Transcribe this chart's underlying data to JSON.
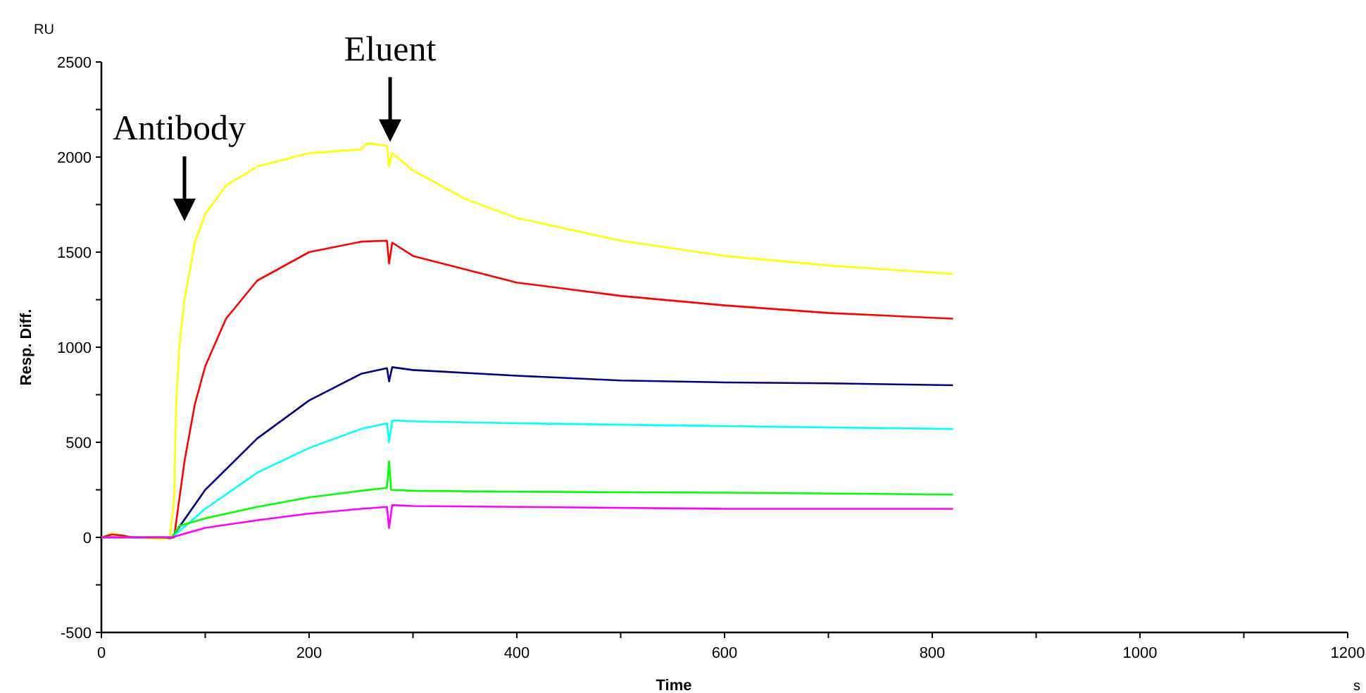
{
  "chart_data": {
    "type": "line",
    "xlabel": "Time",
    "ylabel": "Resp. Diff.",
    "xlim": [
      0,
      1200
    ],
    "ylim": [
      -500,
      2500
    ],
    "xticks": [
      0,
      {
        "value": 100,
        "label": null
      },
      200,
      {
        "value": 300,
        "label": null
      },
      400,
      {
        "value": 500,
        "label": null
      },
      600,
      {
        "value": 700,
        "label": null
      },
      800,
      {
        "value": 900,
        "label": null
      },
      1000,
      {
        "value": 1100,
        "label": null
      },
      1200
    ],
    "yticks": [
      -500,
      {
        "value": -250,
        "label": null
      },
      0,
      {
        "value": 250,
        "label": null
      },
      500,
      {
        "value": 750,
        "label": null
      },
      1000,
      {
        "value": 1250,
        "label": null
      },
      1500,
      {
        "value": 1750,
        "label": null
      },
      2000,
      {
        "value": 2250,
        "label": null
      },
      2500
    ],
    "grid": false,
    "marker": "none",
    "line_style": "solid",
    "series": [
      {
        "color": "#ffff00",
        "x": [
          0,
          10,
          20,
          30,
          60,
          66,
          70,
          72,
          75,
          80,
          90,
          100,
          120,
          150,
          200,
          250,
          255,
          260,
          275,
          277,
          280,
          300,
          350,
          400,
          500,
          600,
          700,
          820
        ],
        "values": [
          0,
          20,
          10,
          0,
          -10,
          0,
          200,
          700,
          1000,
          1250,
          1550,
          1700,
          1850,
          1950,
          2020,
          2040,
          2070,
          2070,
          2060,
          1950,
          2020,
          1930,
          1780,
          1680,
          1560,
          1480,
          1430,
          1385
        ]
      },
      {
        "color": "#ff0000",
        "x": [
          0,
          10,
          20,
          30,
          60,
          66,
          70,
          80,
          90,
          100,
          120,
          150,
          200,
          250,
          275,
          277,
          280,
          300,
          400,
          500,
          600,
          700,
          820
        ],
        "values": [
          0,
          15,
          10,
          0,
          0,
          -5,
          0,
          400,
          700,
          900,
          1150,
          1350,
          1500,
          1555,
          1560,
          1440,
          1550,
          1480,
          1340,
          1270,
          1220,
          1180,
          1150
        ]
      },
      {
        "color": "#000080",
        "x": [
          0,
          66,
          68,
          100,
          150,
          200,
          250,
          275,
          277,
          280,
          300,
          400,
          500,
          600,
          700,
          820
        ],
        "values": [
          0,
          0,
          0,
          250,
          520,
          720,
          860,
          890,
          820,
          895,
          880,
          850,
          825,
          815,
          810,
          800
        ]
      },
      {
        "color": "#00ffff",
        "x": [
          0,
          66,
          68,
          100,
          150,
          200,
          250,
          275,
          277,
          280,
          300,
          400,
          600,
          820
        ],
        "values": [
          0,
          0,
          0,
          150,
          340,
          470,
          570,
          600,
          500,
          615,
          610,
          600,
          585,
          570
        ]
      },
      {
        "color": "#00ff00",
        "x": [
          0,
          66,
          68,
          75,
          100,
          150,
          200,
          250,
          275,
          277,
          279,
          300,
          400,
          600,
          820
        ],
        "values": [
          0,
          0,
          0,
          60,
          100,
          160,
          210,
          245,
          260,
          400,
          250,
          245,
          240,
          235,
          225
        ]
      },
      {
        "color": "#ff00ff",
        "x": [
          0,
          66,
          68,
          100,
          150,
          200,
          250,
          275,
          277,
          280,
          300,
          400,
          600,
          820
        ],
        "values": [
          0,
          0,
          0,
          50,
          90,
          125,
          150,
          160,
          50,
          170,
          165,
          160,
          150,
          150
        ]
      }
    ],
    "annotations": [
      "RU",
      "s",
      "Antibody",
      {
        "text": "Eluent",
        "x": 278,
        "y": 2050
      }
    ]
  }
}
